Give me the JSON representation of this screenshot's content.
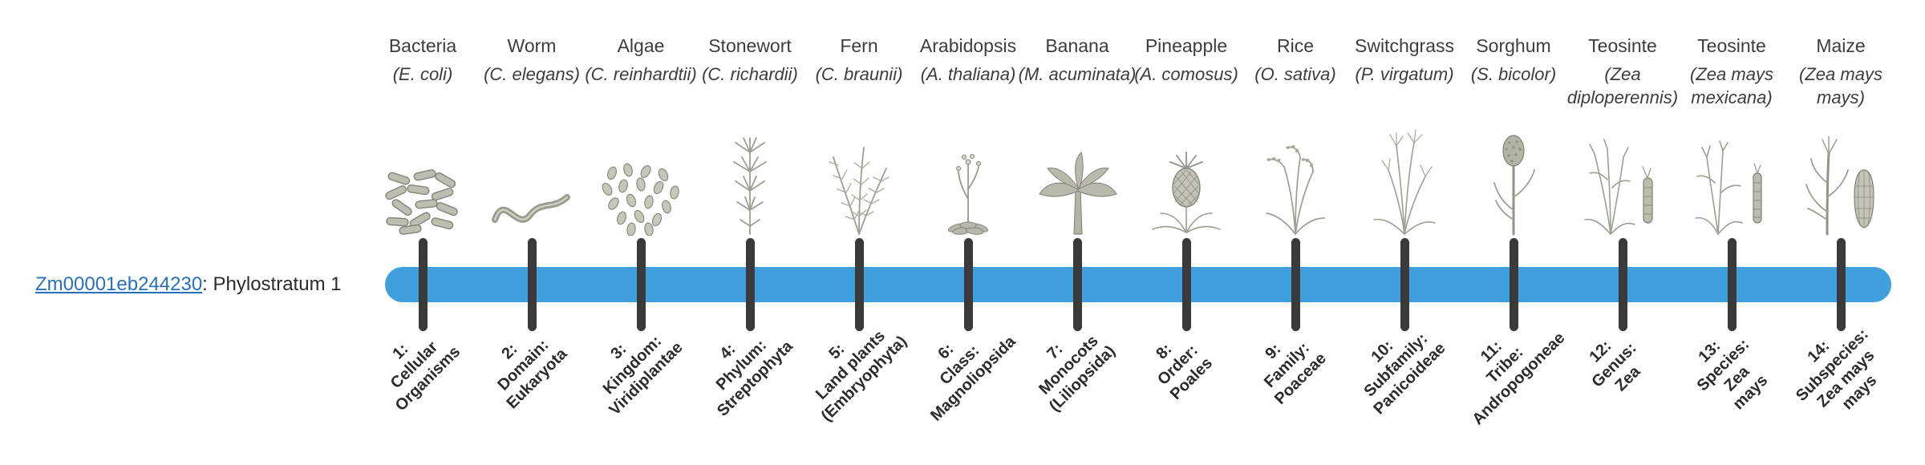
{
  "page": {
    "background": "#ffffff"
  },
  "gene": {
    "link_text": "Zm00001eb244230",
    "suffix": ": Phylostratum 1",
    "link_color": "#2671b8",
    "text_color": "#2b2b2b"
  },
  "timeline": {
    "bar_color": "#3fa0dd",
    "tick_color": "#3a3a3a",
    "num_phylostrata": 14
  },
  "columns": [
    {
      "name": "Bacteria",
      "sci": "(E. coli)",
      "icon": "bacteria-icon",
      "label_lines": [
        "1:",
        "Cellular",
        "Organisms"
      ]
    },
    {
      "name": "Worm",
      "sci": "(C. elegans)",
      "icon": "worm-icon",
      "label_lines": [
        "2:",
        "Domain:",
        "Eukaryota"
      ]
    },
    {
      "name": "Algae",
      "sci": "(C. reinhardtii)",
      "icon": "algae-icon",
      "label_lines": [
        "3:",
        "Kingdom:",
        "Viridiplantae"
      ]
    },
    {
      "name": "Stonewort",
      "sci": "(C. richardii)",
      "icon": "stonewort-icon",
      "label_lines": [
        "4:",
        "Phylum:",
        "Streptophyta"
      ]
    },
    {
      "name": "Fern",
      "sci": "(C. braunii)",
      "icon": "fern-icon",
      "label_lines": [
        "5:",
        "Land plants",
        "(Embryophyta)"
      ]
    },
    {
      "name": "Arabidopsis",
      "sci": "(A. thaliana)",
      "icon": "arabidopsis-icon",
      "label_lines": [
        "6:",
        "Class:",
        "Magnoliopsida"
      ]
    },
    {
      "name": "Banana",
      "sci": "(M. acuminata)",
      "icon": "banana-icon",
      "label_lines": [
        "7:",
        "Monocots",
        "(Liliopsida)"
      ]
    },
    {
      "name": "Pineapple",
      "sci": "(A. comosus)",
      "icon": "pineapple-icon",
      "label_lines": [
        "8:",
        "Order:",
        "Poales"
      ]
    },
    {
      "name": "Rice",
      "sci": "(O. sativa)",
      "icon": "rice-icon",
      "label_lines": [
        "9:",
        "Family:",
        "Poaceae"
      ]
    },
    {
      "name": "Switchgrass",
      "sci": "(P. virgatum)",
      "icon": "switchgrass-icon",
      "label_lines": [
        "10:",
        "Subfamily:",
        "Panicoideae"
      ]
    },
    {
      "name": "Sorghum",
      "sci": "(S. bicolor)",
      "icon": "sorghum-icon",
      "label_lines": [
        "11:",
        "Tribe:",
        "Andropogoneae"
      ]
    },
    {
      "name": "Teosinte",
      "sci": "(Zea diploperennis)",
      "icon": "teosinte-icon",
      "label_lines": [
        "12:",
        "Genus:",
        "Zea"
      ]
    },
    {
      "name": "Teosinte",
      "sci": "(Zea mays mexicana)",
      "icon": "teosinte2-icon",
      "label_lines": [
        "13:",
        "Species:",
        "Zea",
        "mays"
      ]
    },
    {
      "name": "Maize",
      "sci": "(Zea mays mays)",
      "icon": "maize-icon",
      "label_lines": [
        "14:",
        "Subspecies:",
        "Zea mays",
        "mays"
      ]
    }
  ]
}
